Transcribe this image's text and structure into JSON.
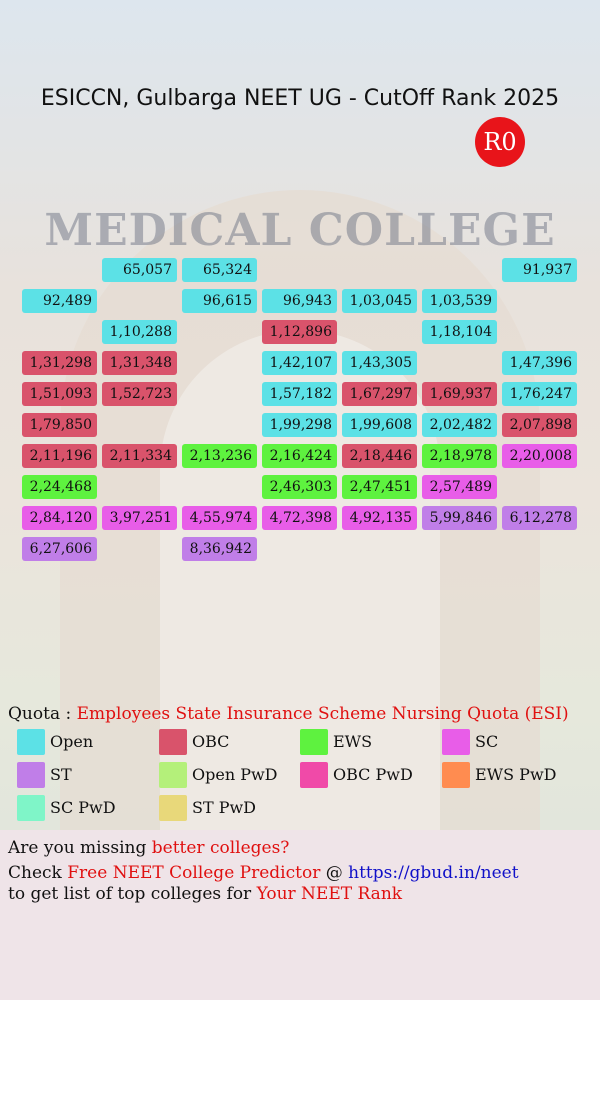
{
  "header": {
    "title": "ESICCN, Gulbarga NEET UG - CutOff Rank 2025",
    "round": "R0",
    "background_text": "MEDICAL COLLEGE"
  },
  "grid": {
    "rows": [
      [
        null,
        {
          "rank": "65,057",
          "quota": "Open"
        },
        {
          "rank": "65,324",
          "quota": "Open"
        },
        null,
        null,
        null,
        {
          "rank": "91,937",
          "quota": "Open"
        }
      ],
      [
        {
          "rank": "92,489",
          "quota": "Open"
        },
        null,
        {
          "rank": "96,615",
          "quota": "Open"
        },
        {
          "rank": "96,943",
          "quota": "Open"
        },
        {
          "rank": "1,03,045",
          "quota": "Open"
        },
        {
          "rank": "1,03,539",
          "quota": "Open"
        },
        null
      ],
      [
        null,
        {
          "rank": "1,10,288",
          "quota": "Open"
        },
        null,
        {
          "rank": "1,12,896",
          "quota": "OBC"
        },
        null,
        {
          "rank": "1,18,104",
          "quota": "Open"
        },
        null
      ],
      [
        {
          "rank": "1,31,298",
          "quota": "OBC"
        },
        {
          "rank": "1,31,348",
          "quota": "OBC"
        },
        null,
        {
          "rank": "1,42,107",
          "quota": "Open"
        },
        {
          "rank": "1,43,305",
          "quota": "Open"
        },
        null,
        {
          "rank": "1,47,396",
          "quota": "Open"
        }
      ],
      [
        {
          "rank": "1,51,093",
          "quota": "OBC"
        },
        {
          "rank": "1,52,723",
          "quota": "OBC"
        },
        null,
        {
          "rank": "1,57,182",
          "quota": "Open"
        },
        {
          "rank": "1,67,297",
          "quota": "OBC"
        },
        {
          "rank": "1,69,937",
          "quota": "OBC"
        },
        {
          "rank": "1,76,247",
          "quota": "Open"
        }
      ],
      [
        {
          "rank": "1,79,850",
          "quota": "OBC"
        },
        null,
        null,
        {
          "rank": "1,99,298",
          "quota": "Open"
        },
        {
          "rank": "1,99,608",
          "quota": "Open"
        },
        {
          "rank": "2,02,482",
          "quota": "Open"
        },
        {
          "rank": "2,07,898",
          "quota": "OBC"
        }
      ],
      [
        {
          "rank": "2,11,196",
          "quota": "OBC"
        },
        {
          "rank": "2,11,334",
          "quota": "OBC"
        },
        {
          "rank": "2,13,236",
          "quota": "EWS"
        },
        {
          "rank": "2,16,424",
          "quota": "EWS"
        },
        {
          "rank": "2,18,446",
          "quota": "OBC"
        },
        {
          "rank": "2,18,978",
          "quota": "EWS"
        },
        {
          "rank": "2,20,008",
          "quota": "SC"
        }
      ],
      [
        {
          "rank": "2,24,468",
          "quota": "EWS"
        },
        null,
        null,
        {
          "rank": "2,46,303",
          "quota": "EWS"
        },
        {
          "rank": "2,47,451",
          "quota": "EWS"
        },
        {
          "rank": "2,57,489",
          "quota": "SC"
        },
        null
      ],
      [
        {
          "rank": "2,84,120",
          "quota": "SC"
        },
        {
          "rank": "3,97,251",
          "quota": "SC"
        },
        {
          "rank": "4,55,974",
          "quota": "SC"
        },
        {
          "rank": "4,72,398",
          "quota": "SC"
        },
        {
          "rank": "4,92,135",
          "quota": "SC"
        },
        {
          "rank": "5,99,846",
          "quota": "ST"
        },
        {
          "rank": "6,12,278",
          "quota": "ST"
        }
      ],
      [
        {
          "rank": "6,27,606",
          "quota": "ST"
        },
        null,
        {
          "rank": "8,36,942",
          "quota": "ST"
        },
        null,
        null,
        null,
        null
      ]
    ]
  },
  "quota": {
    "label": "Quota :",
    "name": "Employees State Insurance Scheme Nursing Quota (ESI)"
  },
  "legend": [
    {
      "name": "Open",
      "color": "#5ce1e6"
    },
    {
      "name": "OBC",
      "color": "#d9536b"
    },
    {
      "name": "EWS",
      "color": "#5ef23f"
    },
    {
      "name": "SC",
      "color": "#e85de8"
    },
    {
      "name": "ST",
      "color": "#c07ee8"
    },
    {
      "name": "Open PwD",
      "color": "#b4f07a"
    },
    {
      "name": "OBC PwD",
      "color": "#f04aa8"
    },
    {
      "name": "EWS PwD",
      "color": "#ff8c50"
    },
    {
      "name": "SC PwD",
      "color": "#7ff5c8"
    },
    {
      "name": "ST PwD",
      "color": "#e8d87a"
    }
  ],
  "footer": {
    "line1": [
      "Are you missing",
      "better colleges?"
    ],
    "line2": [
      "Check",
      "Free NEET College Predictor",
      "@",
      "https://gbud.in/neet"
    ],
    "line3": [
      "to get list of top colleges for",
      "Your NEET Rank"
    ]
  }
}
